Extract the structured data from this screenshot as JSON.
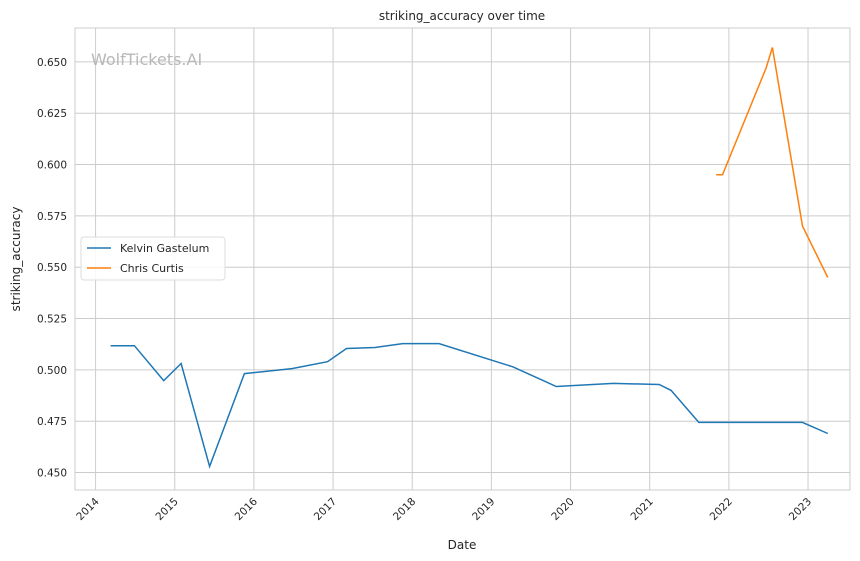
{
  "chart_data": {
    "type": "line",
    "title": "striking_accuracy over time",
    "xlabel": "Date",
    "ylabel": "striking_accuracy",
    "watermark": "WolfTickets.AI",
    "xlim": [
      2013.74,
      2023.53
    ],
    "ylim": [
      0.4415,
      0.6665
    ],
    "xticks": [
      2014,
      2015,
      2016,
      2017,
      2018,
      2019,
      2020,
      2021,
      2022,
      2023
    ],
    "yticks": [
      "0.450",
      "0.475",
      "0.500",
      "0.525",
      "0.550",
      "0.575",
      "0.600",
      "0.625",
      "0.650"
    ],
    "grid": true,
    "legend_position": "center-left",
    "series": [
      {
        "name": "Kelvin Gastelum",
        "color": "#1f77b4",
        "x": [
          2014.19,
          2014.49,
          2014.86,
          2015.08,
          2015.44,
          2015.88,
          2016.48,
          2016.93,
          2017.17,
          2017.53,
          2017.88,
          2018.34,
          2019.27,
          2019.82,
          2020.54,
          2021.12,
          2021.27,
          2021.62,
          2022.93,
          2023.25
        ],
        "y": [
          0.5118,
          0.5118,
          0.4948,
          0.5031,
          0.453,
          0.4982,
          0.5006,
          0.504,
          0.5104,
          0.5109,
          0.5128,
          0.5128,
          0.5015,
          0.4919,
          0.4934,
          0.4929,
          0.49,
          0.4744,
          0.4744,
          0.469
        ]
      },
      {
        "name": "Chris Curtis",
        "color": "#ff7f0e",
        "x": [
          2021.84,
          2021.92,
          2022.47,
          2022.55,
          2022.93,
          2023.25
        ],
        "y": [
          0.595,
          0.595,
          0.647,
          0.657,
          0.57,
          0.545
        ]
      }
    ]
  }
}
